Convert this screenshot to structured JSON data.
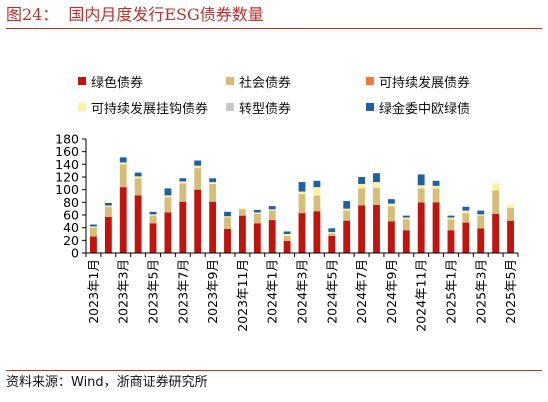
{
  "figure": {
    "number": "图24：",
    "title": "国内月度发行ESG债券数量",
    "source": "资料来源：Wind，浙商证券研究所"
  },
  "colors": {
    "title": "#b8322c",
    "green_bond": "#c0140f",
    "social_bond": "#d6be7a",
    "sustainability_bond": "#ef7d3a",
    "sustainability_linked_bond": "#fbf2a4",
    "transition_bond": "#c8c8c8",
    "eu_green": "#1f5fa8"
  },
  "chart_data": {
    "type": "bar",
    "stacked": true,
    "categories": [
      "2023年1月",
      "2023年2月",
      "2023年3月",
      "2023年4月",
      "2023年5月",
      "2023年6月",
      "2023年7月",
      "2023年8月",
      "2023年9月",
      "2023年10月",
      "2023年11月",
      "2023年12月",
      "2024年1月",
      "2024年2月",
      "2024年3月",
      "2024年4月",
      "2024年5月",
      "2024年6月",
      "2024年7月",
      "2024年8月",
      "2024年9月",
      "2024年10月",
      "2024年11月",
      "2024年12月",
      "2025年1月",
      "2025年2月",
      "2025年3月",
      "2025年4月",
      "2025年5月"
    ],
    "tick_labels": [
      "2023年1月",
      "",
      "2023年3月",
      "",
      "2023年5月",
      "",
      "2023年7月",
      "",
      "2023年9月",
      "",
      "2023年11月",
      "",
      "2024年1月",
      "",
      "2024年3月",
      "",
      "2024年5月",
      "",
      "2024年7月",
      "",
      "2024年9月",
      "",
      "2024年11月",
      "",
      "2025年1月",
      "",
      "2025年3月",
      "",
      "2025年5月"
    ],
    "ylim": [
      0,
      180
    ],
    "yticks": [
      0,
      20,
      40,
      60,
      80,
      100,
      120,
      140,
      160,
      180
    ],
    "series": [
      {
        "name": "绿色债券",
        "color_key": "green_bond",
        "values": [
          26,
          57,
          104,
          91,
          47,
          64,
          81,
          100,
          81,
          38,
          59,
          47,
          52,
          19,
          63,
          66,
          27,
          51,
          75,
          76,
          50,
          36,
          80,
          80,
          36,
          48,
          39,
          62,
          51
        ]
      },
      {
        "name": "社会债券",
        "color_key": "social_bond",
        "values": [
          14,
          16,
          36,
          27,
          12,
          24,
          29,
          34,
          28,
          18,
          10,
          15,
          15,
          8,
          30,
          25,
          4,
          16,
          27,
          27,
          24,
          17,
          22,
          22,
          17,
          15,
          20,
          37,
          20
        ]
      },
      {
        "name": "可持续发展债券",
        "color_key": "sustainability_bond",
        "values": [
          0,
          0,
          0,
          0,
          0,
          0,
          0,
          0,
          0,
          0,
          0,
          0,
          0,
          0,
          0,
          0,
          0,
          0,
          0,
          0,
          0,
          0,
          0,
          0,
          0,
          0,
          0,
          0,
          0
        ]
      },
      {
        "name": "可持续发展挂钩债券",
        "color_key": "sustainability_linked_bond",
        "values": [
          2,
          2,
          3,
          3,
          2,
          3,
          3,
          4,
          3,
          2,
          2,
          2,
          2,
          3,
          4,
          13,
          2,
          3,
          7,
          9,
          4,
          3,
          5,
          4,
          3,
          4,
          2,
          11,
          5
        ]
      },
      {
        "name": "转型债券",
        "color_key": "transition_bond",
        "values": [
          0,
          0,
          0,
          0,
          0,
          0,
          0,
          0,
          0,
          0,
          0,
          0,
          0,
          0,
          0,
          0,
          0,
          0,
          0,
          0,
          0,
          0,
          0,
          0,
          0,
          0,
          0,
          0,
          0
        ]
      },
      {
        "name": "绿金委中欧绿债",
        "color_key": "eu_green",
        "values": [
          3,
          4,
          8,
          6,
          4,
          11,
          5,
          8,
          6,
          7,
          0,
          4,
          5,
          4,
          15,
          10,
          6,
          12,
          11,
          14,
          7,
          3,
          17,
          8,
          3,
          6,
          6,
          0,
          0
        ]
      }
    ]
  }
}
